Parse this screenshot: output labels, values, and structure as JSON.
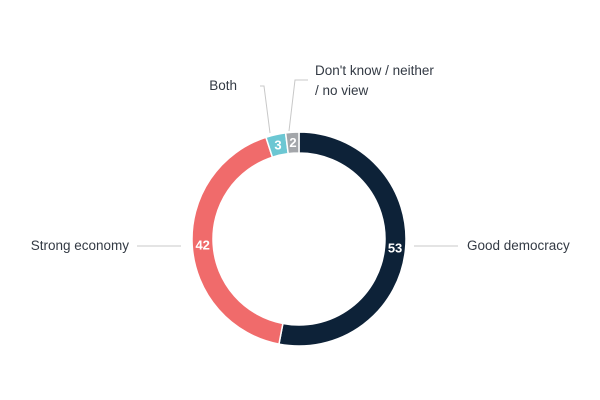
{
  "chart_data": {
    "type": "pie",
    "variant": "donut",
    "title": "",
    "legend": "none",
    "slices": [
      {
        "label": "Good democracy",
        "value": 53,
        "color": "#0d2238"
      },
      {
        "label": "Strong economy",
        "value": 42,
        "color": "#f06b6b"
      },
      {
        "label": "Both",
        "value": 3,
        "color": "#6cc7d3"
      },
      {
        "label": "Don't know / neither",
        "label2": "/ no view",
        "value": 2,
        "color": "#a3a6aa"
      }
    ]
  }
}
